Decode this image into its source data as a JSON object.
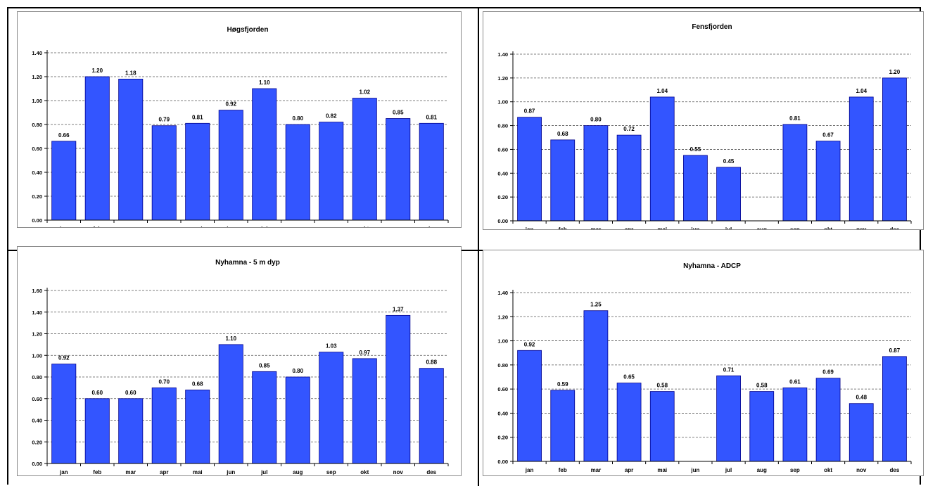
{
  "chart_data": [
    {
      "type": "bar",
      "title": "Høgsfjorden",
      "categories": [
        "jan",
        "feb",
        "mar",
        "apr",
        "mai",
        "jun",
        "jul",
        "aug",
        "sep",
        "okt",
        "nov",
        "des"
      ],
      "values": [
        0.66,
        1.2,
        1.18,
        0.79,
        0.81,
        0.92,
        1.1,
        0.8,
        0.82,
        1.02,
        0.85,
        0.81
      ],
      "ylim": [
        0,
        1.4
      ],
      "yticks": [
        "0.00",
        "0.20",
        "0.40",
        "0.60",
        "0.80",
        "1.00",
        "1.20",
        "1.40"
      ],
      "grid": true,
      "bar_color": "#3355ff"
    },
    {
      "type": "bar",
      "title": "Fensfjorden",
      "categories": [
        "jan",
        "feb",
        "mar",
        "apr",
        "mai",
        "jun",
        "jul",
        "aug",
        "sep",
        "okt",
        "nov",
        "des"
      ],
      "values": [
        0.87,
        0.68,
        0.8,
        0.72,
        1.04,
        0.55,
        0.45,
        null,
        0.81,
        0.67,
        1.04,
        1.2
      ],
      "ylim": [
        0,
        1.4
      ],
      "yticks": [
        "0.00",
        "0.20",
        "0.40",
        "0.60",
        "0.80",
        "1.00",
        "1.20",
        "1.40"
      ],
      "grid": true,
      "bar_color": "#3355ff"
    },
    {
      "type": "bar",
      "title": "Nyhamna - 5 m dyp",
      "categories": [
        "jan",
        "feb",
        "mar",
        "apr",
        "mai",
        "jun",
        "jul",
        "aug",
        "sep",
        "okt",
        "nov",
        "des"
      ],
      "values": [
        0.92,
        0.6,
        0.6,
        0.7,
        0.68,
        1.1,
        0.85,
        0.8,
        1.03,
        0.97,
        1.37,
        0.88
      ],
      "ylim": [
        0,
        1.6
      ],
      "yticks": [
        "0.00",
        "0.20",
        "0.40",
        "0.60",
        "0.80",
        "1.00",
        "1.20",
        "1.40",
        "1.60"
      ],
      "grid": true,
      "bar_color": "#3355ff"
    },
    {
      "type": "bar",
      "title": "Nyhamna - ADCP",
      "categories": [
        "jan",
        "feb",
        "mar",
        "apr",
        "mai",
        "jun",
        "jul",
        "aug",
        "sep",
        "okt",
        "nov",
        "des"
      ],
      "values": [
        0.92,
        0.59,
        1.25,
        0.65,
        0.58,
        null,
        0.71,
        0.58,
        0.61,
        0.69,
        0.48,
        0.87
      ],
      "ylim": [
        0,
        1.4
      ],
      "yticks": [
        "0.00",
        "0.20",
        "0.40",
        "0.60",
        "0.80",
        "1.00",
        "1.20",
        "1.40"
      ],
      "grid": true,
      "bar_color": "#3355ff"
    }
  ]
}
